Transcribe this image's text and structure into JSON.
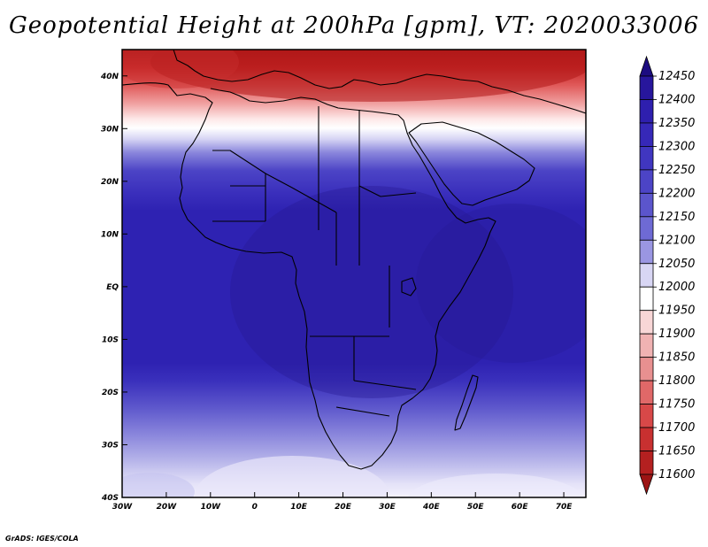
{
  "title": "Geopotential Height at 200hPa [gpm], VT: 2020033006",
  "credit": "GrADS: IGES/COLA",
  "map": {
    "lon_range": [
      -30,
      75
    ],
    "lat_range": [
      -40,
      45
    ],
    "lon_ticks": [
      {
        "value": -30,
        "label": "30W"
      },
      {
        "value": -20,
        "label": "20W"
      },
      {
        "value": -10,
        "label": "10W"
      },
      {
        "value": 0,
        "label": "0"
      },
      {
        "value": 10,
        "label": "10E"
      },
      {
        "value": 20,
        "label": "20E"
      },
      {
        "value": 30,
        "label": "30E"
      },
      {
        "value": 40,
        "label": "40E"
      },
      {
        "value": 50,
        "label": "50E"
      },
      {
        "value": 60,
        "label": "60E"
      },
      {
        "value": 70,
        "label": "70E"
      }
    ],
    "lat_ticks": [
      {
        "value": 40,
        "label": "40N"
      },
      {
        "value": 30,
        "label": "30N"
      },
      {
        "value": 20,
        "label": "20N"
      },
      {
        "value": 10,
        "label": "10N"
      },
      {
        "value": 0,
        "label": "EQ"
      },
      {
        "value": -10,
        "label": "10S"
      },
      {
        "value": -20,
        "label": "20S"
      },
      {
        "value": -30,
        "label": "30S"
      },
      {
        "value": -40,
        "label": "40S"
      }
    ],
    "field": "Geopotential height 200hPa",
    "units": "gpm"
  },
  "colorbar": {
    "levels": [
      12450,
      12400,
      12350,
      12300,
      12250,
      12200,
      12150,
      12100,
      12050,
      12000,
      11950,
      11900,
      11850,
      11800,
      11750,
      11700,
      11650,
      11600
    ],
    "colors": [
      "#1c0c80",
      "#27169c",
      "#2e1fae",
      "#3628b8",
      "#4036c0",
      "#4c44c6",
      "#5b55cc",
      "#6e6ad4",
      "#9a96e2",
      "#d8d6f4",
      "#ffffff",
      "#f8d6d6",
      "#f0b2b2",
      "#e89090",
      "#e06868",
      "#d84848",
      "#c83030",
      "#b42020",
      "#9c1414"
    ]
  }
}
